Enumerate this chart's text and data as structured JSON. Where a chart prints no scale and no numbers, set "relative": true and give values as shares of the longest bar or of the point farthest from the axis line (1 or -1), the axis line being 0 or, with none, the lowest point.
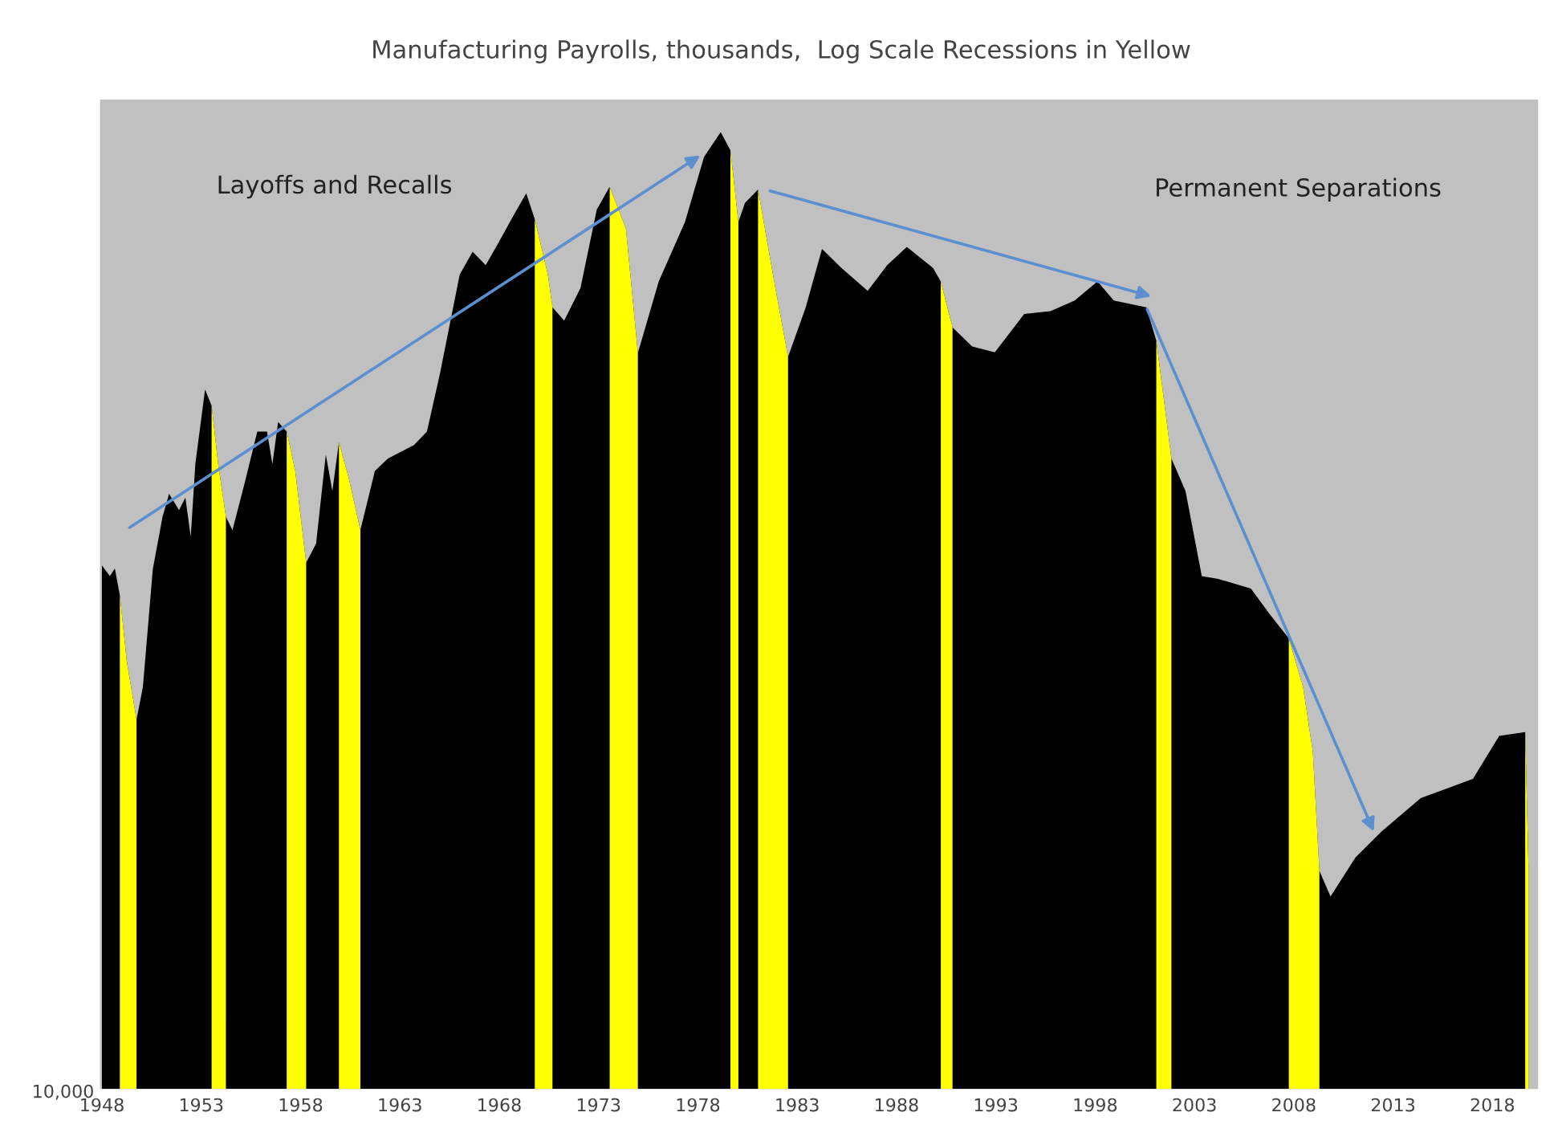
{
  "chart_data": {
    "type": "area",
    "title": "Manufacturing Payrolls, thousands,  Log Scale Recessions in Yellow",
    "relative": true,
    "x": [
      1948.0,
      1948.4,
      1948.65,
      1948.9,
      1949.25,
      1949.74,
      1950.06,
      1950.56,
      1951.05,
      1951.38,
      1951.88,
      1952.2,
      1952.47,
      1952.7,
      1953.19,
      1953.52,
      1953.85,
      1954.24,
      1954.57,
      1955.17,
      1955.82,
      1956.31,
      1956.58,
      1956.87,
      1957.3,
      1957.73,
      1958.28,
      1958.78,
      1959.27,
      1959.6,
      1959.93,
      1960.42,
      1961.01,
      1961.74,
      1962.4,
      1963.71,
      1964.36,
      1965.02,
      1966.01,
      1966.66,
      1967.32,
      1967.98,
      1968.8,
      1969.36,
      1969.79,
      1970.45,
      1970.68,
      1971.27,
      1972.09,
      1972.91,
      1973.56,
      1974.38,
      1974.98,
      1976.03,
      1977.35,
      1978.31,
      1979.15,
      1979.64,
      1980.04,
      1980.37,
      1981.03,
      1981.78,
      1982.54,
      1983.43,
      1984.25,
      1985.23,
      1986.55,
      1987.53,
      1988.52,
      1989.84,
      1990.23,
      1990.82,
      1991.81,
      1992.95,
      1994.43,
      1995.75,
      1996.97,
      1998.12,
      1998.94,
      2000.58,
      2001.08,
      2001.84,
      2002.55,
      2003.37,
      2004.2,
      2005.84,
      2006.83,
      2007.75,
      2008.47,
      2008.96,
      2009.29,
      2009.85,
      2011.11,
      2012.42,
      2014.39,
      2015.71,
      2017.02,
      2018.34,
      2019.65,
      2019.81
    ],
    "series": [
      {
        "color": "#000000",
        "values": [
          0.547,
          0.536,
          0.544,
          0.516,
          0.447,
          0.386,
          0.42,
          0.543,
          0.598,
          0.622,
          0.605,
          0.618,
          0.577,
          0.653,
          0.731,
          0.714,
          0.653,
          0.598,
          0.584,
          0.632,
          0.687,
          0.687,
          0.653,
          0.697,
          0.687,
          0.646,
          0.55,
          0.57,
          0.663,
          0.625,
          0.676,
          0.639,
          0.584,
          0.646,
          0.659,
          0.673,
          0.687,
          0.748,
          0.851,
          0.875,
          0.861,
          0.885,
          0.916,
          0.936,
          0.909,
          0.851,
          0.817,
          0.803,
          0.837,
          0.919,
          0.943,
          0.899,
          0.769,
          0.844,
          0.906,
          0.974,
          1.0,
          0.981,
          0.906,
          0.926,
          0.94,
          0.851,
          0.765,
          0.817,
          0.878,
          0.858,
          0.834,
          0.861,
          0.88,
          0.858,
          0.844,
          0.796,
          0.776,
          0.77,
          0.81,
          0.813,
          0.824,
          0.844,
          0.824,
          0.817,
          0.782,
          0.659,
          0.625,
          0.536,
          0.533,
          0.523,
          0.495,
          0.471,
          0.42,
          0.352,
          0.228,
          0.201,
          0.242,
          0.269,
          0.304,
          0.314,
          0.324,
          0.369,
          0.373,
          0.235
        ]
      },
      {
        "color": "#ffff00",
        "values": [
          null,
          null,
          null,
          0.516,
          0.447,
          0.386,
          null,
          null,
          null,
          null,
          null,
          null,
          null,
          null,
          null,
          0.714,
          0.653,
          0.598,
          null,
          null,
          null,
          null,
          null,
          null,
          0.687,
          0.646,
          0.55,
          null,
          null,
          null,
          0.676,
          0.639,
          0.584,
          null,
          null,
          null,
          null,
          null,
          null,
          null,
          null,
          null,
          null,
          null,
          0.909,
          0.851,
          0.817,
          null,
          null,
          null,
          0.943,
          0.899,
          0.769,
          null,
          null,
          null,
          null,
          0.981,
          0.906,
          null,
          0.94,
          0.851,
          0.765,
          null,
          null,
          null,
          null,
          null,
          null,
          null,
          0.844,
          0.796,
          null,
          null,
          null,
          null,
          null,
          null,
          null,
          null,
          0.782,
          0.659,
          null,
          null,
          null,
          null,
          null,
          0.471,
          0.42,
          0.352,
          0.228,
          null,
          null,
          null,
          null,
          null,
          null,
          null,
          0.373,
          0.235
        ]
      }
    ],
    "xlim": [
      1947.9,
      2020.3
    ],
    "xticks": [
      1948,
      1953,
      1958,
      1963,
      1968,
      1973,
      1978,
      1983,
      1988,
      1993,
      1998,
      2003,
      2008,
      2013,
      2018
    ],
    "annotations": [
      "Layoffs and Recalls",
      "Permanent Separations",
      "10,000"
    ],
    "grid": false,
    "legend": false
  }
}
